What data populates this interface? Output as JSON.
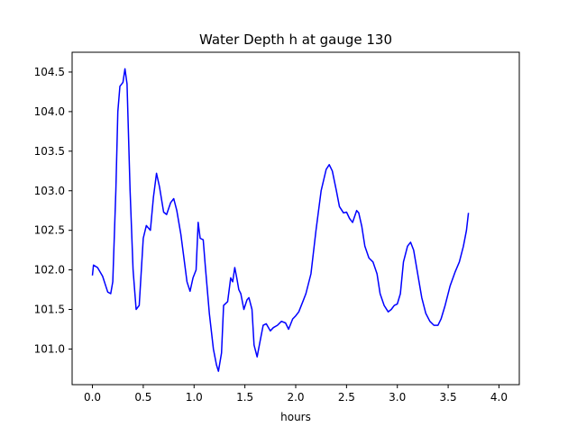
{
  "chart_data": {
    "type": "line",
    "title": "Water Depth h at gauge 130",
    "xlabel": "hours",
    "ylabel": "",
    "xlim": [
      -0.2,
      4.2
    ],
    "ylim": [
      100.55,
      104.75
    ],
    "xticks": [
      0.0,
      0.5,
      1.0,
      1.5,
      2.0,
      2.5,
      3.0,
      3.5,
      4.0
    ],
    "xtick_labels": [
      "0.0",
      "0.5",
      "1.0",
      "1.5",
      "2.0",
      "2.5",
      "3.0",
      "3.5",
      "4.0"
    ],
    "yticks": [
      101.0,
      101.5,
      102.0,
      102.5,
      103.0,
      103.5,
      104.0,
      104.5
    ],
    "ytick_labels": [
      "101.0",
      "101.5",
      "102.0",
      "102.5",
      "103.0",
      "103.5",
      "104.0",
      "104.5"
    ],
    "grid": false,
    "series": [
      {
        "color": "#0000ff",
        "points": [
          [
            0.0,
            101.93
          ],
          [
            0.01,
            102.06
          ],
          [
            0.05,
            102.03
          ],
          [
            0.1,
            101.92
          ],
          [
            0.15,
            101.72
          ],
          [
            0.18,
            101.7
          ],
          [
            0.2,
            101.85
          ],
          [
            0.23,
            103.0
          ],
          [
            0.25,
            104.0
          ],
          [
            0.27,
            104.32
          ],
          [
            0.3,
            104.37
          ],
          [
            0.32,
            104.54
          ],
          [
            0.34,
            104.35
          ],
          [
            0.37,
            103.0
          ],
          [
            0.4,
            102.0
          ],
          [
            0.43,
            101.5
          ],
          [
            0.46,
            101.55
          ],
          [
            0.5,
            102.4
          ],
          [
            0.53,
            102.56
          ],
          [
            0.57,
            102.5
          ],
          [
            0.6,
            102.92
          ],
          [
            0.63,
            103.22
          ],
          [
            0.66,
            103.05
          ],
          [
            0.7,
            102.73
          ],
          [
            0.73,
            102.7
          ],
          [
            0.77,
            102.85
          ],
          [
            0.8,
            102.9
          ],
          [
            0.83,
            102.75
          ],
          [
            0.87,
            102.45
          ],
          [
            0.9,
            102.15
          ],
          [
            0.93,
            101.85
          ],
          [
            0.96,
            101.73
          ],
          [
            0.99,
            101.9
          ],
          [
            1.02,
            102.0
          ],
          [
            1.04,
            102.6
          ],
          [
            1.06,
            102.4
          ],
          [
            1.09,
            102.38
          ],
          [
            1.11,
            102.05
          ],
          [
            1.15,
            101.45
          ],
          [
            1.19,
            101.0
          ],
          [
            1.22,
            100.8
          ],
          [
            1.24,
            100.72
          ],
          [
            1.27,
            100.95
          ],
          [
            1.29,
            101.55
          ],
          [
            1.33,
            101.6
          ],
          [
            1.36,
            101.9
          ],
          [
            1.38,
            101.85
          ],
          [
            1.4,
            102.03
          ],
          [
            1.42,
            101.9
          ],
          [
            1.44,
            101.75
          ],
          [
            1.46,
            101.7
          ],
          [
            1.49,
            101.5
          ],
          [
            1.52,
            101.62
          ],
          [
            1.54,
            101.65
          ],
          [
            1.57,
            101.5
          ],
          [
            1.59,
            101.05
          ],
          [
            1.62,
            100.9
          ],
          [
            1.65,
            101.1
          ],
          [
            1.68,
            101.3
          ],
          [
            1.71,
            101.32
          ],
          [
            1.75,
            101.23
          ],
          [
            1.78,
            101.27
          ],
          [
            1.82,
            101.3
          ],
          [
            1.86,
            101.35
          ],
          [
            1.9,
            101.33
          ],
          [
            1.93,
            101.25
          ],
          [
            1.97,
            101.38
          ],
          [
            2.0,
            101.42
          ],
          [
            2.03,
            101.47
          ],
          [
            2.07,
            101.6
          ],
          [
            2.1,
            101.7
          ],
          [
            2.15,
            101.95
          ],
          [
            2.2,
            102.5
          ],
          [
            2.25,
            103.0
          ],
          [
            2.3,
            103.27
          ],
          [
            2.33,
            103.33
          ],
          [
            2.36,
            103.25
          ],
          [
            2.4,
            103.0
          ],
          [
            2.43,
            102.8
          ],
          [
            2.47,
            102.72
          ],
          [
            2.5,
            102.73
          ],
          [
            2.53,
            102.65
          ],
          [
            2.56,
            102.6
          ],
          [
            2.6,
            102.75
          ],
          [
            2.62,
            102.72
          ],
          [
            2.65,
            102.55
          ],
          [
            2.68,
            102.3
          ],
          [
            2.72,
            102.15
          ],
          [
            2.76,
            102.1
          ],
          [
            2.8,
            101.95
          ],
          [
            2.83,
            101.7
          ],
          [
            2.87,
            101.55
          ],
          [
            2.91,
            101.47
          ],
          [
            2.94,
            101.5
          ],
          [
            2.97,
            101.55
          ],
          [
            3.0,
            101.57
          ],
          [
            3.03,
            101.7
          ],
          [
            3.06,
            102.1
          ],
          [
            3.1,
            102.3
          ],
          [
            3.13,
            102.35
          ],
          [
            3.16,
            102.25
          ],
          [
            3.2,
            101.95
          ],
          [
            3.24,
            101.65
          ],
          [
            3.28,
            101.45
          ],
          [
            3.32,
            101.35
          ],
          [
            3.36,
            101.3
          ],
          [
            3.4,
            101.3
          ],
          [
            3.43,
            101.38
          ],
          [
            3.47,
            101.55
          ],
          [
            3.52,
            101.8
          ],
          [
            3.57,
            101.98
          ],
          [
            3.61,
            102.1
          ],
          [
            3.65,
            102.3
          ],
          [
            3.68,
            102.5
          ],
          [
            3.7,
            102.72
          ]
        ]
      }
    ]
  }
}
